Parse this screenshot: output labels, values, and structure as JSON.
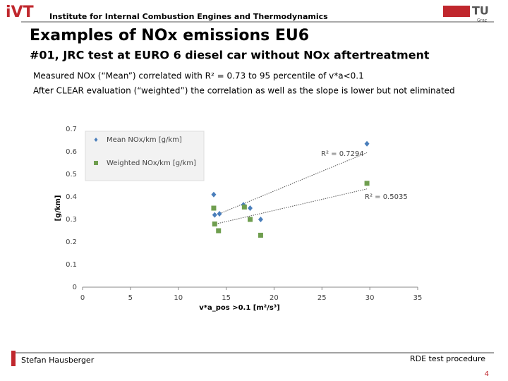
{
  "header": {
    "logo": "iVT",
    "institute": "Institute for Internal Combustion Engines and Thermodynamics",
    "university": "TU",
    "city": "Graz",
    "title": "Examples of NOx emissions EU6",
    "subtitle": "#01, JRC test at EURO 6 diesel car without NOx aftertreatment",
    "lines": [
      "Measured NOx (“Mean”) correlated with R² = 0.73 to 95 percentile of v*a<0.1",
      "After CLEAR evaluation (“weighted”) the correlation as well as the slope is lower but not eliminated"
    ]
  },
  "chart_data": {
    "type": "scatter",
    "xlabel": "v*a_pos >0.1 [m²/s³]",
    "ylabel": "[g/km]",
    "xlim": [
      0,
      35
    ],
    "xticks": [
      0,
      5,
      10,
      15,
      20,
      25,
      30,
      35
    ],
    "ylim": [
      0,
      0.7
    ],
    "yticks": [
      0,
      0.1,
      0.2,
      0.3,
      0.4,
      0.5,
      0.6,
      0.7
    ],
    "trendline": true,
    "legend": "upper left",
    "series": [
      {
        "name": "Mean NOx/km [g/km]",
        "color": "#4a7ebb",
        "marker": "diamond",
        "x": [
          13.7,
          13.8,
          14.3,
          16.8,
          17.5,
          18.6,
          29.7
        ],
        "values": [
          0.41,
          0.32,
          0.325,
          0.365,
          0.35,
          0.3,
          0.635
        ],
        "annotation": "R² = 0.7294"
      },
      {
        "name": "Weighted NOx/km [g/km]",
        "color": "#6f9e4f",
        "marker": "square",
        "x": [
          13.7,
          13.8,
          14.2,
          16.9,
          17.5,
          18.6,
          29.7
        ],
        "values": [
          0.35,
          0.28,
          0.25,
          0.355,
          0.3,
          0.23,
          0.46
        ],
        "annotation": "R² = 0.5035"
      }
    ]
  },
  "footer": {
    "author": "Stefan Hausberger",
    "topic": "RDE test procedure",
    "page": "4"
  }
}
